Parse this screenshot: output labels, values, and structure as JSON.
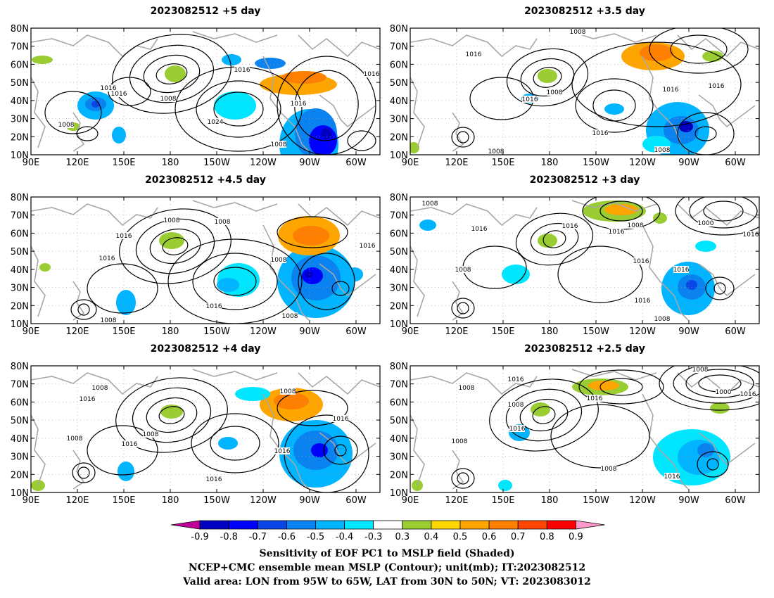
{
  "panels": [
    {
      "title": "2023082512  +5 day",
      "lat_labels": [
        "80N",
        "70N",
        "60N",
        "50N",
        "40N",
        "30N",
        "20N",
        "10N"
      ],
      "lon_labels": [
        "90E",
        "120E",
        "150E",
        "180",
        "150W",
        "120W",
        "90W",
        "60W"
      ],
      "contour_labels": [
        "1016",
        "1016",
        "1008",
        "1024",
        "1008",
        "1016",
        "1016",
        "1008",
        "1016"
      ]
    },
    {
      "title": "2023082512  +3.5 day",
      "lat_labels": [
        "80N",
        "70N",
        "60N",
        "50N",
        "40N",
        "30N",
        "20N",
        "10N"
      ],
      "lon_labels": [
        "90E",
        "120E",
        "150E",
        "180",
        "150W",
        "120W",
        "90W",
        "60W"
      ],
      "contour_labels": [
        "1008",
        "1016",
        "1008",
        "1016",
        "1016",
        "1016",
        "1016",
        "1008",
        "1008"
      ]
    },
    {
      "title": "2023082512  +4.5 day",
      "lat_labels": [
        "80N",
        "70N",
        "60N",
        "50N",
        "40N",
        "30N",
        "20N",
        "10N"
      ],
      "lon_labels": [
        "90E",
        "120E",
        "150E",
        "180",
        "150W",
        "120W",
        "90W",
        "60W"
      ],
      "contour_labels": [
        "1008",
        "1008",
        "1016",
        "1016",
        "1008",
        "1016",
        "1016",
        "1008",
        "1008"
      ]
    },
    {
      "title": "2023082512  +3 day",
      "lat_labels": [
        "80N",
        "70N",
        "60N",
        "50N",
        "40N",
        "30N",
        "20N",
        "10N"
      ],
      "lon_labels": [
        "90E",
        "120E",
        "150E",
        "180",
        "150W",
        "120W",
        "90W",
        "60W"
      ],
      "contour_labels": [
        "1008",
        "1016",
        "1008",
        "1016",
        "1016",
        "1008",
        "1000",
        "1016",
        "1016",
        "1016",
        "1008",
        "1016"
      ]
    },
    {
      "title": "2023082512  +4 day",
      "lat_labels": [
        "80N",
        "70N",
        "60N",
        "50N",
        "40N",
        "30N",
        "20N",
        "10N"
      ],
      "lon_labels": [
        "90E",
        "120E",
        "150E",
        "180",
        "150W",
        "120W",
        "90W",
        "60W"
      ],
      "contour_labels": [
        "1008",
        "1016",
        "1008",
        "1016",
        "1008",
        "1008",
        "1016",
        "1016",
        "1016"
      ]
    },
    {
      "title": "2023082512  +2.5 day",
      "lat_labels": [
        "80N",
        "70N",
        "60N",
        "50N",
        "40N",
        "30N",
        "20N",
        "10N"
      ],
      "lon_labels": [
        "90E",
        "120E",
        "150E",
        "180",
        "150W",
        "120W",
        "90W",
        "60W"
      ],
      "contour_labels": [
        "1008",
        "1016",
        "1008",
        "1016",
        "1008",
        "1016",
        "1008",
        "1016",
        "1000",
        "1016",
        "1008"
      ]
    }
  ],
  "colorbar": {
    "tick_labels": [
      "-0.9",
      "-0.8",
      "-0.7",
      "-0.6",
      "-0.5",
      "-0.4",
      "-0.3",
      "0.3",
      "0.4",
      "0.5",
      "0.6",
      "0.7",
      "0.8",
      "0.9"
    ],
    "colors": [
      "#c00099",
      "#0000c0",
      "#0000ff",
      "#0a46e6",
      "#0a82f0",
      "#00b4ff",
      "#00e6ff",
      "#ffffff",
      "#9acd32",
      "#ffd700",
      "#ffa500",
      "#ff7f00",
      "#ff4500",
      "#ff0000",
      "#ff99cc"
    ]
  },
  "caption": {
    "line1": "Sensitivity of EOF PC1 to MSLP field (Shaded)",
    "line2": "NCEP+CMC ensemble mean MSLP (Contour); unit(mb); IT:2023082512",
    "line3": "Valid area: LON from 95W to 65W, LAT from 30N to 50N; VT: 2023083012"
  }
}
